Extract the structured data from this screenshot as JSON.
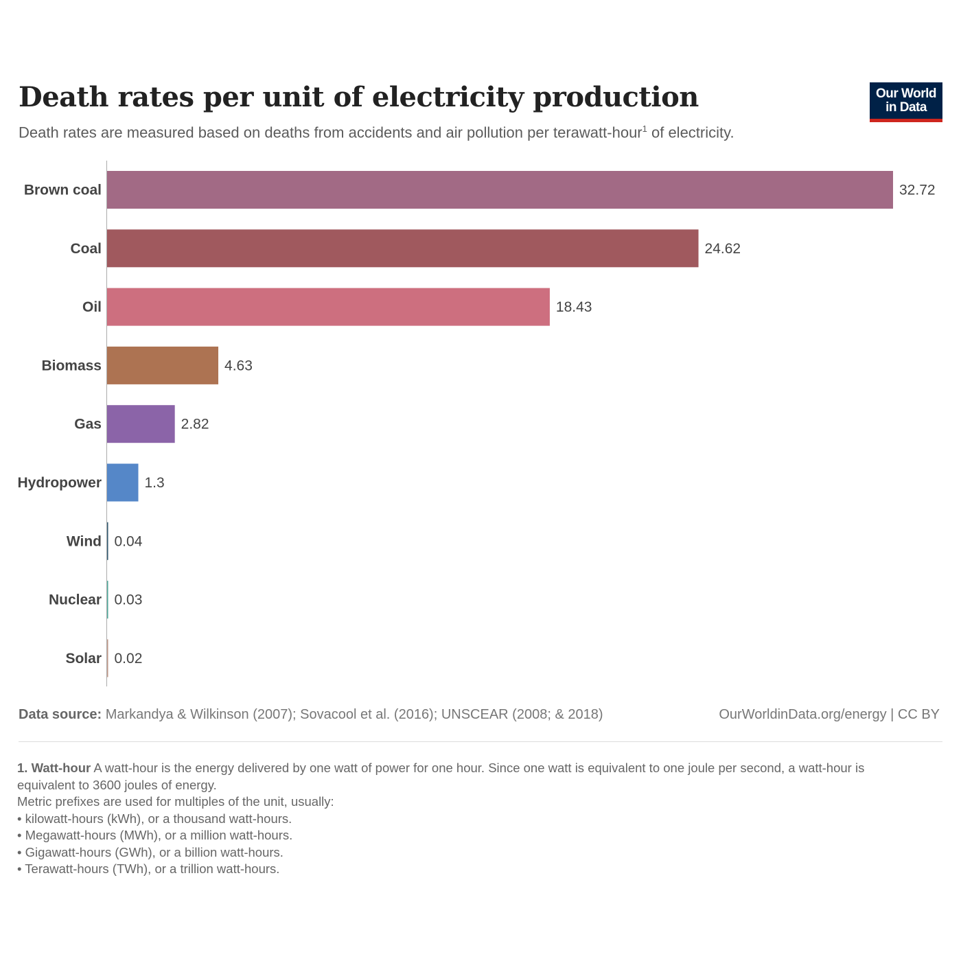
{
  "chart_data": {
    "type": "bar",
    "orientation": "horizontal",
    "title": "Death rates per unit of electricity production",
    "subtitle": "Death rates are measured based on deaths from accidents and air pollution per terawatt-hour",
    "subtitle_sup": "1",
    "subtitle_end": " of electricity.",
    "categories": [
      "Brown coal",
      "Coal",
      "Oil",
      "Biomass",
      "Gas",
      "Hydropower",
      "Wind",
      "Nuclear",
      "Solar"
    ],
    "values": [
      32.72,
      24.62,
      18.43,
      4.63,
      2.82,
      1.3,
      0.04,
      0.03,
      0.02
    ],
    "value_labels": [
      "32.72",
      "24.62",
      "18.43",
      "4.63",
      "2.82",
      "1.3",
      "0.04",
      "0.03",
      "0.02"
    ],
    "colors": [
      "#a26a85",
      "#a0595e",
      "#cd6f7f",
      "#ad7352",
      "#8b64a8",
      "#5587c8",
      "#325a70",
      "#4eaa9b",
      "#c09a8a"
    ],
    "xlim": [
      0,
      32.72
    ],
    "grid": false,
    "legend": "none"
  },
  "logo": {
    "line1": "Our World",
    "line2": "in Data"
  },
  "footer": {
    "source_label": "Data source:",
    "source_text": " Markandya & Wilkinson (2007); Sovacool et al. (2016); UNSCEAR (2008; & 2018)",
    "url": "OurWorldinData.org/energy | CC BY"
  },
  "footnote": {
    "term": "1. Watt-hour",
    "text": " A watt-hour is the energy delivered by one watt of power for one hour. Since one watt is equivalent to one joule per second, a watt-hour is equivalent to 3600 joules of energy.",
    "prefix_intro": "Metric prefixes are used for multiples of the unit, usually:",
    "items": [
      "kilowatt-hours (kWh), or a thousand watt-hours.",
      "Megawatt-hours (MWh), or a million watt-hours.",
      "Gigawatt-hours (GWh), or a billion watt-hours.",
      "Terawatt-hours (TWh), or a trillion watt-hours."
    ]
  }
}
